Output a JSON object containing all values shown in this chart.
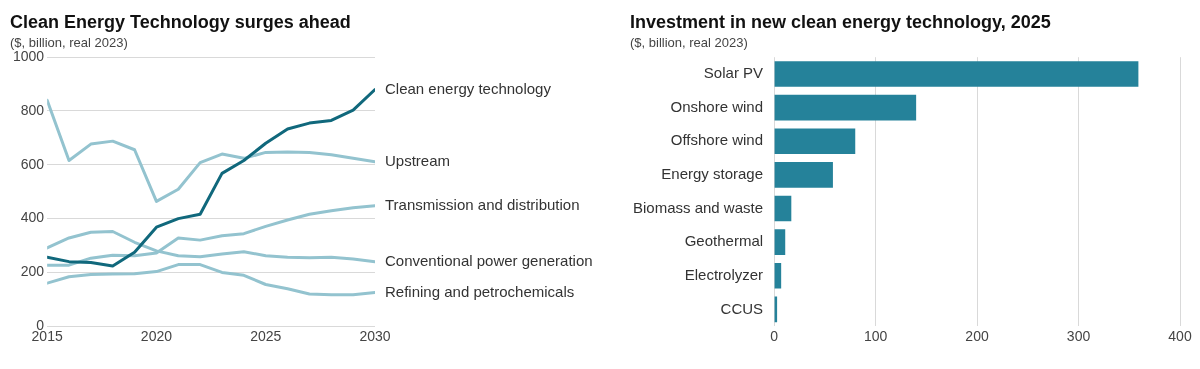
{
  "chart_data": [
    {
      "type": "line",
      "title": "Clean Energy Technology surges ahead",
      "ylabel": "($, billion, real 2023)",
      "x": [
        2015,
        2016,
        2017,
        2018,
        2019,
        2020,
        2021,
        2022,
        2023,
        2024,
        2025,
        2026,
        2027,
        2028,
        2029,
        2030
      ],
      "xlim": [
        2015,
        2030
      ],
      "xticks": [
        2015,
        2020,
        2025,
        2030
      ],
      "ylim": [
        0,
        1000
      ],
      "yticks": [
        0,
        200,
        400,
        600,
        800,
        1000
      ],
      "grid": "y",
      "legend": false,
      "marker": "none",
      "line_style": "solid",
      "series": [
        {
          "name": "Clean energy technology",
          "color": "#10687c",
          "values": [
            256,
            240,
            237,
            224,
            275,
            368,
            400,
            416,
            568,
            616,
            680,
            733,
            755,
            765,
            803,
            880
          ]
        },
        {
          "name": "Upstream",
          "color": "#93c3cf",
          "values": [
            840,
            616,
            677,
            688,
            656,
            464,
            509,
            608,
            640,
            624,
            646,
            648,
            646,
            637,
            624,
            611
          ]
        },
        {
          "name": "Transmission and distribution",
          "color": "#93c3cf",
          "values": [
            227,
            227,
            253,
            264,
            262,
            272,
            328,
            320,
            336,
            344,
            371,
            395,
            416,
            429,
            440,
            448
          ]
        },
        {
          "name": "Conventional power generation",
          "color": "#93c3cf",
          "values": [
            291,
            328,
            349,
            352,
            312,
            280,
            262,
            258,
            268,
            277,
            262,
            256,
            254,
            256,
            250,
            240
          ]
        },
        {
          "name": "Refining and petrochemicals",
          "color": "#93c3cf",
          "values": [
            160,
            184,
            192,
            194,
            195,
            203,
            229,
            229,
            200,
            189,
            155,
            139,
            120,
            117,
            117,
            125
          ]
        }
      ]
    },
    {
      "type": "bar",
      "orientation": "horizontal",
      "title": "Investment in new clean energy technology, 2025",
      "ylabel": "($, billion, real 2023)",
      "categories": [
        "Solar PV",
        "Onshore wind",
        "Offshore wind",
        "Energy storage",
        "Biomass and waste",
        "Geothermal",
        "Electrolyzer",
        "CCUS"
      ],
      "values": [
        359,
        140,
        80,
        58,
        17,
        11,
        7,
        3
      ],
      "color": "#25829a",
      "xlim": [
        0,
        400
      ],
      "xticks": [
        0,
        100,
        200,
        300,
        400
      ],
      "grid": "x",
      "legend": false
    }
  ]
}
